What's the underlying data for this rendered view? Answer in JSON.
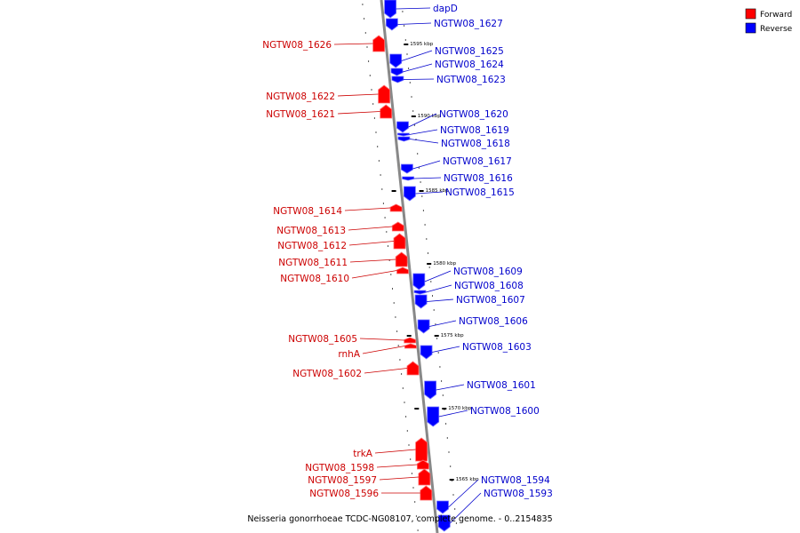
{
  "colors": {
    "forward": "#ff0000",
    "reverse": "#0000ff",
    "axis": "#888888",
    "text_forward": "#cc0000",
    "text_reverse": "#0000cc"
  },
  "legend": [
    {
      "label": "Forward",
      "strand": "forward"
    },
    {
      "label": "Reverse",
      "strand": "reverse"
    }
  ],
  "caption": "Neisseria gonorrhoeae TCDC-NG08107, complete genome. - 0..2154835",
  "ticks": [
    "1595 kbp",
    "1590 kbp",
    "1585 kbp",
    "1580 kbp",
    "1575 kbp",
    "1570 kbp",
    "1565 kbp"
  ],
  "genes": [
    {
      "name": "dapD",
      "strand": "reverse"
    },
    {
      "name": "NGTW08_1627",
      "strand": "reverse"
    },
    {
      "name": "NGTW08_1626",
      "strand": "forward"
    },
    {
      "name": "NGTW08_1625",
      "strand": "reverse"
    },
    {
      "name": "NGTW08_1624",
      "strand": "reverse"
    },
    {
      "name": "NGTW08_1623",
      "strand": "reverse"
    },
    {
      "name": "NGTW08_1622",
      "strand": "forward"
    },
    {
      "name": "NGTW08_1621",
      "strand": "forward"
    },
    {
      "name": "NGTW08_1620",
      "strand": "reverse"
    },
    {
      "name": "NGTW08_1619",
      "strand": "reverse"
    },
    {
      "name": "NGTW08_1618",
      "strand": "reverse"
    },
    {
      "name": "NGTW08_1617",
      "strand": "reverse"
    },
    {
      "name": "NGTW08_1616",
      "strand": "reverse"
    },
    {
      "name": "NGTW08_1615",
      "strand": "reverse"
    },
    {
      "name": "NGTW08_1614",
      "strand": "forward"
    },
    {
      "name": "NGTW08_1613",
      "strand": "forward"
    },
    {
      "name": "NGTW08_1612",
      "strand": "forward"
    },
    {
      "name": "NGTW08_1611",
      "strand": "forward"
    },
    {
      "name": "NGTW08_1610",
      "strand": "forward"
    },
    {
      "name": "NGTW08_1609",
      "strand": "reverse"
    },
    {
      "name": "NGTW08_1608",
      "strand": "reverse"
    },
    {
      "name": "NGTW08_1607",
      "strand": "reverse"
    },
    {
      "name": "NGTW08_1606",
      "strand": "reverse"
    },
    {
      "name": "NGTW08_1605",
      "strand": "forward"
    },
    {
      "name": "rnhA",
      "strand": "forward"
    },
    {
      "name": "NGTW08_1603",
      "strand": "reverse"
    },
    {
      "name": "NGTW08_1602",
      "strand": "forward"
    },
    {
      "name": "NGTW08_1601",
      "strand": "reverse"
    },
    {
      "name": "NGTW08_1600",
      "strand": "reverse"
    },
    {
      "name": "trkA",
      "strand": "forward"
    },
    {
      "name": "NGTW08_1598",
      "strand": "forward"
    },
    {
      "name": "NGTW08_1597",
      "strand": "forward"
    },
    {
      "name": "NGTW08_1596",
      "strand": "forward"
    },
    {
      "name": "NGTW08_1594",
      "strand": "reverse"
    },
    {
      "name": "NGTW08_1593",
      "strand": "reverse"
    }
  ]
}
